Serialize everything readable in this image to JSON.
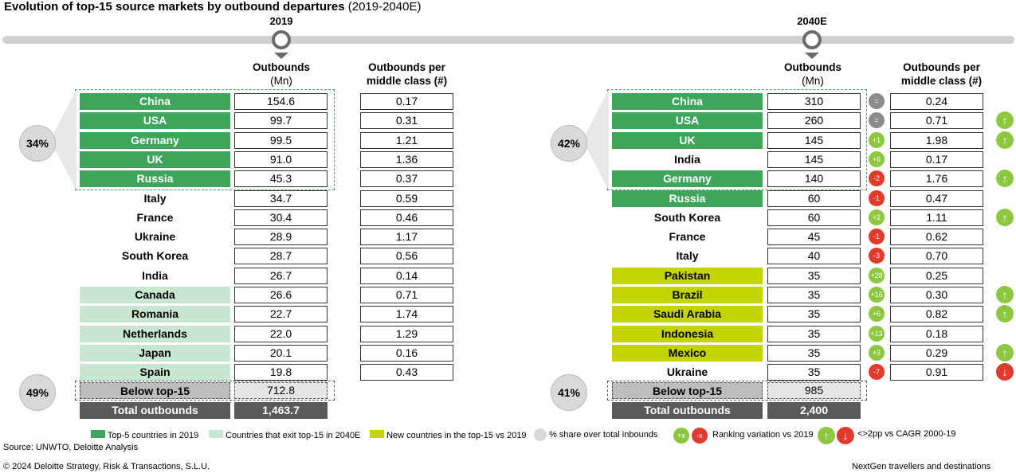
{
  "title": "Evolution of top-15 source markets by outbound departures",
  "title_sub": "(2019-2040E)",
  "colors": {
    "top5": "#3fa55a",
    "exit": "#c8e6d0",
    "new": "#c4d400",
    "green": "#8dc63f",
    "red": "#e23a2c",
    "neutral": "#8c8c8c",
    "grey": "#bdbdbd",
    "total": "#5a5a5a"
  },
  "chart_data": [
    {
      "type": "table",
      "year": "2019",
      "col_outbounds": "Outbounds",
      "col_outbounds_unit": "(Mn)",
      "col_per_mc": "Outbounds per",
      "col_per_mc_2": "middle class (#)",
      "top5_share": "34%",
      "below_share": "49%",
      "rows": [
        {
          "country": "China",
          "outbounds": "154.6",
          "per_mc": "0.17",
          "cat": "top5"
        },
        {
          "country": "USA",
          "outbounds": "99.7",
          "per_mc": "0.31",
          "cat": "top5"
        },
        {
          "country": "Germany",
          "outbounds": "99.5",
          "per_mc": "1.21",
          "cat": "top5"
        },
        {
          "country": "UK",
          "outbounds": "91.0",
          "per_mc": "1.36",
          "cat": "top5"
        },
        {
          "country": "Russia",
          "outbounds": "45.3",
          "per_mc": "0.37",
          "cat": "top5"
        },
        {
          "country": "Italy",
          "outbounds": "34.7",
          "per_mc": "0.59",
          "cat": "none"
        },
        {
          "country": "France",
          "outbounds": "30.4",
          "per_mc": "0.46",
          "cat": "none"
        },
        {
          "country": "Ukraine",
          "outbounds": "28.9",
          "per_mc": "1.17",
          "cat": "none"
        },
        {
          "country": "South Korea",
          "outbounds": "28.7",
          "per_mc": "0.56",
          "cat": "none"
        },
        {
          "country": "India",
          "outbounds": "26.7",
          "per_mc": "0.14",
          "cat": "none"
        },
        {
          "country": "Canada",
          "outbounds": "26.6",
          "per_mc": "0.71",
          "cat": "exit"
        },
        {
          "country": "Romania",
          "outbounds": "22.7",
          "per_mc": "1.74",
          "cat": "exit"
        },
        {
          "country": "Netherlands",
          "outbounds": "22.0",
          "per_mc": "1.29",
          "cat": "exit"
        },
        {
          "country": "Japan",
          "outbounds": "20.1",
          "per_mc": "0.16",
          "cat": "exit"
        },
        {
          "country": "Spain",
          "outbounds": "19.8",
          "per_mc": "0.43",
          "cat": "exit"
        }
      ],
      "below": {
        "label": "Below top-15",
        "outbounds": "712.8"
      },
      "total": {
        "label": "Total outbounds",
        "outbounds": "1,463.7"
      }
    },
    {
      "type": "table",
      "year": "2040E",
      "col_outbounds": "Outbounds",
      "col_outbounds_unit": "(Mn)",
      "col_per_mc": "Outbounds per",
      "col_per_mc_2": "middle class (#)",
      "top5_share": "42%",
      "below_share": "41%",
      "rows": [
        {
          "country": "China",
          "outbounds": "310",
          "rank": "=",
          "rank_dir": "n",
          "per_mc": "0.24",
          "arrow": ""
        },
        {
          "country": "USA",
          "outbounds": "260",
          "rank": "=",
          "rank_dir": "n",
          "per_mc": "0.71",
          "arrow": "up"
        },
        {
          "country": "UK",
          "outbounds": "145",
          "rank": "+1",
          "rank_dir": "g",
          "per_mc": "1.98",
          "arrow": "up",
          "cat": "top5"
        },
        {
          "country": "India",
          "outbounds": "145",
          "rank": "+6",
          "rank_dir": "g",
          "per_mc": "0.17",
          "arrow": "",
          "cat": "none"
        },
        {
          "country": "Germany",
          "outbounds": "140",
          "rank": "-2",
          "rank_dir": "r",
          "per_mc": "1.76",
          "arrow": "up",
          "cat": "top5"
        },
        {
          "country": "Russia",
          "outbounds": "60",
          "rank": "-1",
          "rank_dir": "r",
          "per_mc": "0.47",
          "arrow": "",
          "cat": "top5"
        },
        {
          "country": "South Korea",
          "outbounds": "60",
          "rank": "+2",
          "rank_dir": "g",
          "per_mc": "1.11",
          "arrow": "up",
          "cat": "none"
        },
        {
          "country": "France",
          "outbounds": "45",
          "rank": "-1",
          "rank_dir": "r",
          "per_mc": "0.62",
          "arrow": "",
          "cat": "none"
        },
        {
          "country": "Italy",
          "outbounds": "40",
          "rank": "-3",
          "rank_dir": "r",
          "per_mc": "0.70",
          "arrow": "",
          "cat": "none"
        },
        {
          "country": "Pakistan",
          "outbounds": "35",
          "rank": "+28",
          "rank_dir": "g",
          "per_mc": "0.25",
          "arrow": "",
          "cat": "new"
        },
        {
          "country": "Brazil",
          "outbounds": "35",
          "rank": "+16",
          "rank_dir": "g",
          "per_mc": "0.30",
          "arrow": "up",
          "cat": "new"
        },
        {
          "country": "Saudi Arabia",
          "outbounds": "35",
          "rank": "+6",
          "rank_dir": "g",
          "per_mc": "0.82",
          "arrow": "up",
          "cat": "new"
        },
        {
          "country": "Indonesia",
          "outbounds": "35",
          "rank": "+13",
          "rank_dir": "g",
          "per_mc": "0.18",
          "arrow": "",
          "cat": "new"
        },
        {
          "country": "Mexico",
          "outbounds": "35",
          "rank": "+3",
          "rank_dir": "g",
          "per_mc": "0.29",
          "arrow": "up",
          "cat": "new"
        },
        {
          "country": "Ukraine",
          "outbounds": "35",
          "rank": "-7",
          "rank_dir": "r",
          "per_mc": "0.91",
          "arrow": "down",
          "cat": "none"
        }
      ],
      "below": {
        "label": "Below top-15",
        "outbounds": "985"
      },
      "total": {
        "label": "Total outbounds",
        "outbounds": "2,400"
      }
    }
  ],
  "legend": {
    "top5": "Top-5 countries in 2019",
    "exit": "Countries that exit top-15 in 2040E",
    "new": "New countries in the top-15 vs 2019",
    "share": "% share over total inbounds",
    "plus": "+x",
    "minus": "-x",
    "ranking": "Ranking variation vs 2019",
    "cagr": "<>2pp vs CAGR 2000-19"
  },
  "source": "Source: UNWTO, Deloitte Analysis",
  "footer_left": "© 2024 Deloitte Strategy, Risk & Transactions, S.L.U.",
  "footer_right": "NextGen travellers and destinations"
}
